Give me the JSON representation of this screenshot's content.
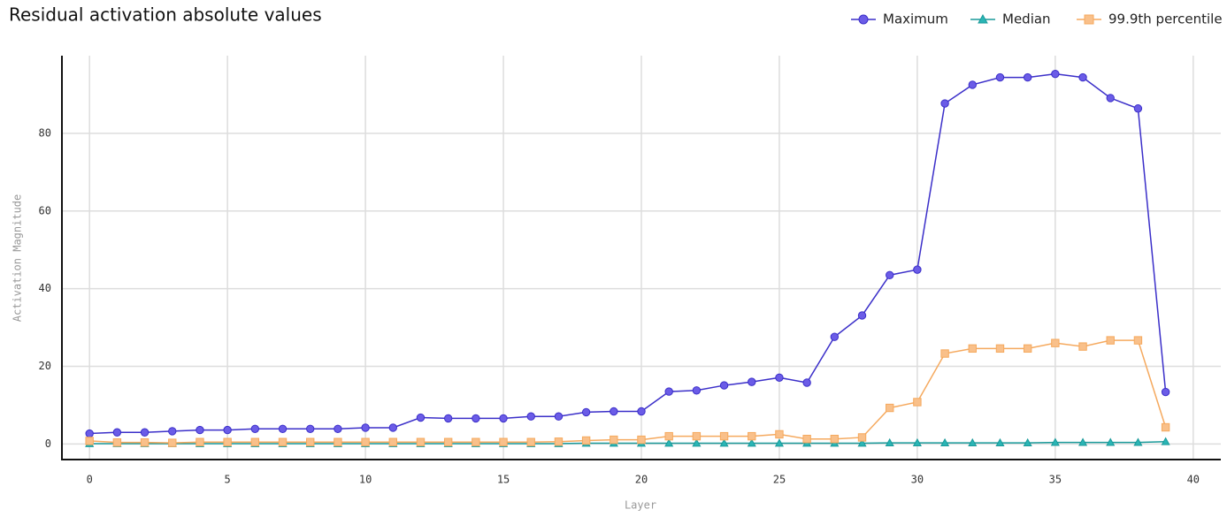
{
  "chart_data": {
    "type": "line",
    "title": "Residual activation absolute values",
    "x_label": "Layer",
    "y_label": "Activation Magnitude",
    "x": [
      0,
      1,
      2,
      3,
      4,
      5,
      6,
      7,
      8,
      9,
      10,
      11,
      12,
      13,
      14,
      15,
      16,
      17,
      18,
      19,
      20,
      21,
      22,
      23,
      24,
      25,
      26,
      27,
      28,
      29,
      30,
      31,
      32,
      33,
      34,
      35,
      36,
      37,
      38,
      39
    ],
    "series": [
      {
        "name": "Maximum",
        "color": "#6b5ce7",
        "line_color": "#3b2fc9",
        "marker": "circle",
        "values": [
          2.7,
          3.0,
          3.0,
          3.3,
          3.6,
          3.6,
          3.9,
          3.9,
          3.9,
          3.9,
          4.2,
          4.2,
          6.8,
          6.6,
          6.6,
          6.6,
          7.1,
          7.1,
          8.2,
          8.4,
          8.4,
          13.5,
          13.8,
          15.1,
          16.0,
          17.1,
          15.8,
          27.6,
          33.1,
          43.5,
          44.9,
          87.7,
          92.5,
          94.4,
          94.4,
          95.3,
          94.4,
          89.1,
          86.4,
          13.4
        ]
      },
      {
        "name": "Median",
        "color": "#2ab5b5",
        "line_color": "#1a9a9a",
        "marker": "triangle",
        "values": [
          0.1,
          0.1,
          0.1,
          0.1,
          0.1,
          0.1,
          0.1,
          0.1,
          0.1,
          0.1,
          0.1,
          0.1,
          0.1,
          0.1,
          0.1,
          0.1,
          0.1,
          0.1,
          0.2,
          0.2,
          0.2,
          0.2,
          0.2,
          0.2,
          0.2,
          0.2,
          0.2,
          0.2,
          0.2,
          0.3,
          0.3,
          0.3,
          0.3,
          0.3,
          0.3,
          0.4,
          0.4,
          0.4,
          0.4,
          0.6
        ]
      },
      {
        "name": "99.9th percentile",
        "color": "#f9c08a",
        "line_color": "#f5a95e",
        "marker": "square",
        "values": [
          0.8,
          0.4,
          0.4,
          0.3,
          0.5,
          0.5,
          0.5,
          0.5,
          0.5,
          0.5,
          0.5,
          0.5,
          0.5,
          0.5,
          0.5,
          0.5,
          0.5,
          0.6,
          0.9,
          1.1,
          1.1,
          2.0,
          2.0,
          2.0,
          2.0,
          2.5,
          1.3,
          1.3,
          1.7,
          9.3,
          10.8,
          23.3,
          24.6,
          24.6,
          24.6,
          26.0,
          25.1,
          26.7,
          26.7,
          4.3
        ]
      }
    ],
    "xlim": [
      -1,
      41
    ],
    "xticks": [
      0,
      5,
      10,
      15,
      20,
      25,
      30,
      35,
      40
    ],
    "ylim": [
      -4,
      100
    ],
    "yticks": [
      0,
      20,
      40,
      60,
      80
    ],
    "grid": true,
    "legend": "top-right"
  }
}
